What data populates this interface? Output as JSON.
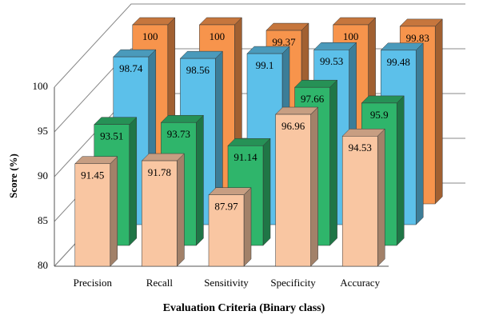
{
  "chart_data": {
    "type": "bar3d",
    "x_label": "Evaluation Criteria (Binary class)",
    "y_label": "Score (%)",
    "categories": [
      "Precision",
      "Recall",
      "Sensitivity",
      "Specificity",
      "Accuracy"
    ],
    "series": [
      {
        "color": "#f9c6a2",
        "values": [
          91.45,
          91.78,
          87.97,
          96.96,
          94.53
        ]
      },
      {
        "color": "#2fb56b",
        "values": [
          93.51,
          93.73,
          91.14,
          97.66,
          95.9
        ]
      },
      {
        "color": "#5cc0ea",
        "values": [
          98.74,
          98.56,
          99.1,
          99.53,
          99.48
        ]
      },
      {
        "color": "#f7944c",
        "values": [
          100,
          100,
          99.37,
          100,
          99.83
        ]
      }
    ],
    "ylim": [
      80,
      100
    ],
    "yticks": [
      80,
      85,
      90,
      95,
      100
    ],
    "grid": true
  }
}
